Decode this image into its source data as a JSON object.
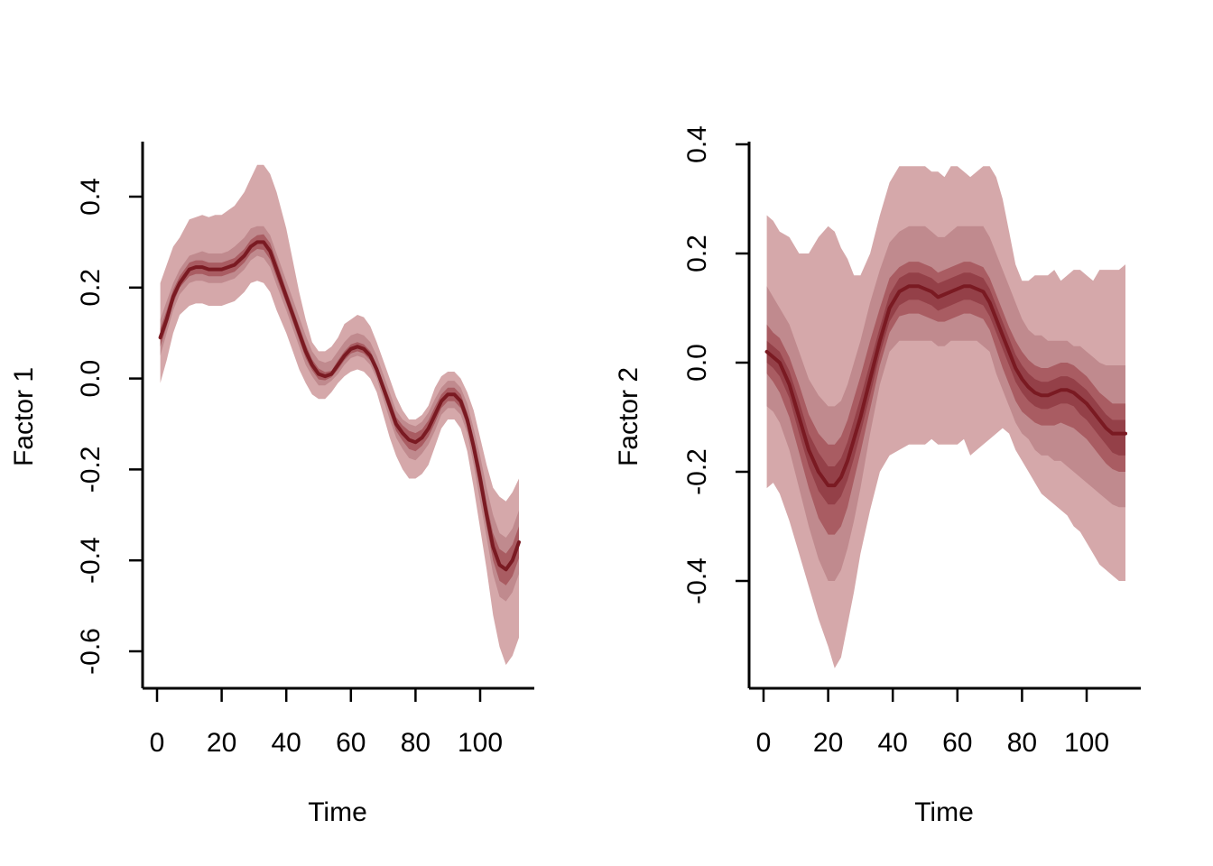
{
  "chart_data": [
    {
      "type": "area",
      "xlabel": "Time",
      "ylabel": "Factor 1",
      "xlim": [
        -3,
        117
      ],
      "ylim": [
        -0.68,
        0.52
      ],
      "x_ticks": [
        0,
        20,
        40,
        60,
        80,
        100
      ],
      "x_tick_labels": [
        "0",
        "20",
        "40",
        "60",
        "80",
        "100"
      ],
      "y_ticks": [
        -0.6,
        -0.4,
        -0.2,
        0.0,
        0.2,
        0.4
      ],
      "y_tick_labels": [
        "-0.6",
        "-0.4",
        "-0.2",
        "0.0",
        "0.2",
        "0.4"
      ],
      "grid": false,
      "x": [
        1,
        3,
        5,
        7,
        10,
        12,
        14,
        16,
        18,
        20,
        22,
        24,
        27,
        29,
        31,
        33,
        35,
        37,
        40,
        42,
        44,
        46,
        48,
        50,
        52,
        54,
        56,
        58,
        60,
        62,
        64,
        66,
        68,
        70,
        72,
        74,
        76,
        78,
        80,
        82,
        84,
        86,
        88,
        90,
        92,
        94,
        96,
        98,
        100,
        102,
        104,
        106,
        108,
        110,
        112
      ],
      "series": [
        {
          "values": [
            0.09,
            0.13,
            0.18,
            0.21,
            0.24,
            0.245,
            0.245,
            0.24,
            0.24,
            0.24,
            0.245,
            0.25,
            0.27,
            0.29,
            0.3,
            0.3,
            0.28,
            0.24,
            0.18,
            0.14,
            0.1,
            0.06,
            0.03,
            0.01,
            0.005,
            0.01,
            0.03,
            0.05,
            0.065,
            0.07,
            0.065,
            0.05,
            0.02,
            -0.02,
            -0.06,
            -0.1,
            -0.12,
            -0.135,
            -0.14,
            -0.13,
            -0.11,
            -0.08,
            -0.05,
            -0.035,
            -0.035,
            -0.05,
            -0.09,
            -0.15,
            -0.22,
            -0.3,
            -0.37,
            -0.41,
            -0.42,
            -0.4,
            -0.36
          ]
        }
      ],
      "bands": {
        "lower": [
          [
            -0.01,
            0.04,
            0.1,
            0.14,
            0.16,
            0.165,
            0.165,
            0.16,
            0.16,
            0.16,
            0.165,
            0.17,
            0.19,
            0.21,
            0.215,
            0.21,
            0.19,
            0.15,
            0.1,
            0.06,
            0.02,
            -0.01,
            -0.035,
            -0.045,
            -0.045,
            -0.03,
            -0.01,
            0.005,
            0.015,
            0.02,
            0.015,
            0.0,
            -0.03,
            -0.08,
            -0.13,
            -0.17,
            -0.2,
            -0.22,
            -0.22,
            -0.21,
            -0.19,
            -0.15,
            -0.11,
            -0.09,
            -0.09,
            -0.11,
            -0.16,
            -0.24,
            -0.33,
            -0.42,
            -0.52,
            -0.59,
            -0.63,
            -0.61,
            -0.57
          ],
          [
            0.05,
            0.1,
            0.15,
            0.185,
            0.21,
            0.215,
            0.215,
            0.21,
            0.21,
            0.21,
            0.215,
            0.22,
            0.24,
            0.26,
            0.27,
            0.265,
            0.245,
            0.205,
            0.15,
            0.11,
            0.07,
            0.03,
            0.005,
            -0.015,
            -0.015,
            -0.005,
            0.01,
            0.03,
            0.045,
            0.05,
            0.045,
            0.03,
            0.0,
            -0.045,
            -0.09,
            -0.13,
            -0.155,
            -0.175,
            -0.18,
            -0.165,
            -0.145,
            -0.115,
            -0.08,
            -0.065,
            -0.065,
            -0.08,
            -0.12,
            -0.19,
            -0.27,
            -0.35,
            -0.43,
            -0.48,
            -0.49,
            -0.47,
            -0.43
          ],
          [
            0.07,
            0.115,
            0.165,
            0.2,
            0.225,
            0.23,
            0.23,
            0.225,
            0.225,
            0.225,
            0.23,
            0.235,
            0.255,
            0.275,
            0.285,
            0.283,
            0.262,
            0.222,
            0.165,
            0.125,
            0.085,
            0.045,
            0.018,
            -0.002,
            -0.004,
            0.003,
            0.02,
            0.04,
            0.055,
            0.06,
            0.055,
            0.04,
            0.01,
            -0.032,
            -0.075,
            -0.115,
            -0.137,
            -0.155,
            -0.16,
            -0.148,
            -0.128,
            -0.098,
            -0.065,
            -0.05,
            -0.05,
            -0.065,
            -0.105,
            -0.17,
            -0.245,
            -0.325,
            -0.4,
            -0.445,
            -0.455,
            -0.435,
            -0.395
          ]
        ],
        "upper": [
          [
            0.21,
            0.25,
            0.29,
            0.31,
            0.35,
            0.355,
            0.36,
            0.355,
            0.36,
            0.36,
            0.37,
            0.38,
            0.41,
            0.44,
            0.47,
            0.47,
            0.45,
            0.41,
            0.33,
            0.26,
            0.19,
            0.13,
            0.08,
            0.06,
            0.06,
            0.07,
            0.09,
            0.12,
            0.13,
            0.14,
            0.135,
            0.115,
            0.08,
            0.04,
            0.0,
            -0.04,
            -0.07,
            -0.09,
            -0.09,
            -0.08,
            -0.06,
            -0.02,
            0.005,
            0.015,
            0.015,
            0.0,
            -0.03,
            -0.07,
            -0.13,
            -0.19,
            -0.24,
            -0.26,
            -0.27,
            -0.25,
            -0.22
          ],
          [
            0.13,
            0.17,
            0.21,
            0.24,
            0.27,
            0.275,
            0.28,
            0.275,
            0.275,
            0.275,
            0.28,
            0.29,
            0.31,
            0.33,
            0.335,
            0.335,
            0.315,
            0.275,
            0.215,
            0.175,
            0.135,
            0.095,
            0.06,
            0.04,
            0.035,
            0.04,
            0.06,
            0.08,
            0.095,
            0.1,
            0.095,
            0.08,
            0.05,
            0.01,
            -0.03,
            -0.07,
            -0.09,
            -0.1,
            -0.105,
            -0.095,
            -0.075,
            -0.045,
            -0.02,
            -0.005,
            -0.005,
            -0.02,
            -0.055,
            -0.11,
            -0.17,
            -0.24,
            -0.3,
            -0.34,
            -0.35,
            -0.33,
            -0.29
          ],
          [
            0.11,
            0.15,
            0.195,
            0.225,
            0.255,
            0.26,
            0.26,
            0.255,
            0.255,
            0.255,
            0.26,
            0.265,
            0.285,
            0.305,
            0.315,
            0.317,
            0.298,
            0.258,
            0.195,
            0.155,
            0.115,
            0.075,
            0.042,
            0.022,
            0.014,
            0.017,
            0.04,
            0.06,
            0.075,
            0.08,
            0.075,
            0.06,
            0.03,
            -0.008,
            -0.045,
            -0.085,
            -0.103,
            -0.115,
            -0.12,
            -0.112,
            -0.092,
            -0.062,
            -0.035,
            -0.02,
            -0.02,
            -0.035,
            -0.075,
            -0.13,
            -0.195,
            -0.275,
            -0.34,
            -0.375,
            -0.385,
            -0.365,
            -0.325
          ]
        ]
      }
    },
    {
      "type": "area",
      "xlabel": "Time",
      "ylabel": "Factor 2",
      "xlim": [
        -3,
        117
      ],
      "ylim": [
        -0.6,
        0.4
      ],
      "x_ticks": [
        0,
        20,
        40,
        60,
        80,
        100
      ],
      "x_tick_labels": [
        "0",
        "20",
        "40",
        "60",
        "80",
        "100"
      ],
      "y_ticks": [
        -0.4,
        -0.2,
        0.0,
        0.2,
        0.4
      ],
      "y_tick_labels": [
        "-0.4",
        "-0.2",
        "0.0",
        "0.2",
        "0.4"
      ],
      "grid": false,
      "x": [
        1,
        3,
        5,
        8,
        11,
        14,
        17,
        20,
        22,
        24,
        26,
        28,
        30,
        33,
        36,
        39,
        42,
        45,
        48,
        50,
        52,
        54,
        56,
        58,
        60,
        62,
        64,
        66,
        68,
        70,
        72,
        74,
        76,
        78,
        80,
        82,
        84,
        86,
        88,
        90,
        92,
        94,
        96,
        98,
        100,
        102,
        104,
        106,
        108,
        110,
        112
      ],
      "series": [
        {
          "values": [
            0.02,
            0.01,
            0.0,
            -0.04,
            -0.1,
            -0.16,
            -0.2,
            -0.225,
            -0.225,
            -0.21,
            -0.18,
            -0.14,
            -0.1,
            -0.03,
            0.04,
            0.1,
            0.13,
            0.14,
            0.14,
            0.135,
            0.13,
            0.12,
            0.125,
            0.13,
            0.135,
            0.14,
            0.14,
            0.135,
            0.13,
            0.11,
            0.08,
            0.05,
            0.02,
            -0.01,
            -0.03,
            -0.045,
            -0.055,
            -0.06,
            -0.06,
            -0.055,
            -0.05,
            -0.05,
            -0.055,
            -0.065,
            -0.075,
            -0.09,
            -0.105,
            -0.12,
            -0.13,
            -0.13,
            -0.13
          ]
        }
      ],
      "bands": {
        "lower": [
          [
            -0.23,
            -0.22,
            -0.24,
            -0.29,
            -0.35,
            -0.41,
            -0.47,
            -0.52,
            -0.56,
            -0.54,
            -0.48,
            -0.42,
            -0.35,
            -0.27,
            -0.2,
            -0.17,
            -0.16,
            -0.15,
            -0.15,
            -0.15,
            -0.14,
            -0.15,
            -0.15,
            -0.15,
            -0.15,
            -0.14,
            -0.17,
            -0.16,
            -0.15,
            -0.14,
            -0.13,
            -0.12,
            -0.13,
            -0.16,
            -0.18,
            -0.2,
            -0.22,
            -0.24,
            -0.25,
            -0.26,
            -0.27,
            -0.28,
            -0.3,
            -0.31,
            -0.33,
            -0.35,
            -0.37,
            -0.38,
            -0.39,
            -0.4,
            -0.4
          ],
          [
            -0.08,
            -0.09,
            -0.11,
            -0.16,
            -0.23,
            -0.3,
            -0.36,
            -0.4,
            -0.4,
            -0.38,
            -0.34,
            -0.29,
            -0.23,
            -0.13,
            -0.04,
            0.02,
            0.04,
            0.04,
            0.04,
            0.04,
            0.04,
            0.03,
            0.03,
            0.04,
            0.04,
            0.04,
            0.04,
            0.04,
            0.03,
            0.02,
            -0.02,
            -0.05,
            -0.08,
            -0.11,
            -0.13,
            -0.14,
            -0.16,
            -0.17,
            -0.17,
            -0.18,
            -0.18,
            -0.19,
            -0.2,
            -0.21,
            -0.22,
            -0.23,
            -0.24,
            -0.25,
            -0.26,
            -0.265,
            -0.265
          ],
          [
            -0.02,
            -0.035,
            -0.055,
            -0.1,
            -0.165,
            -0.23,
            -0.285,
            -0.315,
            -0.315,
            -0.3,
            -0.265,
            -0.215,
            -0.165,
            -0.085,
            -0.005,
            0.055,
            0.085,
            0.09,
            0.09,
            0.085,
            0.08,
            0.075,
            0.075,
            0.08,
            0.085,
            0.09,
            0.09,
            0.085,
            0.08,
            0.06,
            0.025,
            -0.01,
            -0.04,
            -0.07,
            -0.09,
            -0.1,
            -0.11,
            -0.115,
            -0.115,
            -0.115,
            -0.11,
            -0.115,
            -0.12,
            -0.13,
            -0.14,
            -0.155,
            -0.17,
            -0.185,
            -0.195,
            -0.2,
            -0.2
          ],
          [
            0.0,
            -0.01,
            -0.025,
            -0.065,
            -0.13,
            -0.19,
            -0.235,
            -0.26,
            -0.26,
            -0.245,
            -0.215,
            -0.175,
            -0.13,
            -0.06,
            0.015,
            0.075,
            0.105,
            0.115,
            0.115,
            0.11,
            0.105,
            0.095,
            0.1,
            0.105,
            0.11,
            0.115,
            0.115,
            0.11,
            0.105,
            0.085,
            0.055,
            0.025,
            -0.005,
            -0.035,
            -0.055,
            -0.07,
            -0.08,
            -0.085,
            -0.085,
            -0.08,
            -0.075,
            -0.075,
            -0.08,
            -0.095,
            -0.105,
            -0.12,
            -0.135,
            -0.15,
            -0.165,
            -0.17,
            -0.17
          ]
        ],
        "upper": [
          [
            0.27,
            0.26,
            0.24,
            0.23,
            0.2,
            0.2,
            0.23,
            0.25,
            0.24,
            0.21,
            0.19,
            0.16,
            0.16,
            0.2,
            0.27,
            0.33,
            0.36,
            0.36,
            0.36,
            0.36,
            0.35,
            0.35,
            0.34,
            0.36,
            0.36,
            0.35,
            0.34,
            0.35,
            0.36,
            0.36,
            0.34,
            0.3,
            0.24,
            0.18,
            0.15,
            0.15,
            0.16,
            0.16,
            0.16,
            0.17,
            0.15,
            0.16,
            0.17,
            0.17,
            0.16,
            0.15,
            0.17,
            0.17,
            0.17,
            0.17,
            0.18
          ],
          [
            0.14,
            0.12,
            0.1,
            0.07,
            0.02,
            -0.03,
            -0.06,
            -0.08,
            -0.08,
            -0.07,
            -0.04,
            0.0,
            0.04,
            0.11,
            0.17,
            0.22,
            0.24,
            0.25,
            0.25,
            0.25,
            0.24,
            0.23,
            0.23,
            0.24,
            0.25,
            0.25,
            0.25,
            0.25,
            0.25,
            0.23,
            0.2,
            0.17,
            0.14,
            0.11,
            0.08,
            0.06,
            0.05,
            0.05,
            0.04,
            0.04,
            0.04,
            0.04,
            0.03,
            0.03,
            0.02,
            0.01,
            0.0,
            -0.005,
            -0.005,
            -0.005,
            -0.005
          ],
          [
            0.07,
            0.055,
            0.045,
            0.01,
            -0.04,
            -0.095,
            -0.13,
            -0.15,
            -0.15,
            -0.135,
            -0.105,
            -0.065,
            -0.025,
            0.04,
            0.1,
            0.155,
            0.175,
            0.185,
            0.185,
            0.18,
            0.175,
            0.165,
            0.17,
            0.175,
            0.18,
            0.185,
            0.185,
            0.18,
            0.175,
            0.155,
            0.125,
            0.095,
            0.065,
            0.04,
            0.02,
            0.005,
            -0.005,
            -0.01,
            -0.01,
            -0.005,
            0.0,
            0.0,
            -0.005,
            -0.015,
            -0.025,
            -0.04,
            -0.055,
            -0.065,
            -0.075,
            -0.075,
            -0.075
          ],
          [
            0.04,
            0.03,
            0.02,
            -0.015,
            -0.07,
            -0.13,
            -0.165,
            -0.19,
            -0.19,
            -0.175,
            -0.145,
            -0.105,
            -0.065,
            0.0,
            0.065,
            0.125,
            0.155,
            0.165,
            0.165,
            0.16,
            0.155,
            0.145,
            0.15,
            0.155,
            0.16,
            0.165,
            0.165,
            0.16,
            0.155,
            0.135,
            0.105,
            0.075,
            0.045,
            0.015,
            -0.005,
            -0.02,
            -0.03,
            -0.035,
            -0.035,
            -0.03,
            -0.025,
            -0.025,
            -0.03,
            -0.04,
            -0.05,
            -0.065,
            -0.08,
            -0.095,
            -0.105,
            -0.105,
            -0.105
          ]
        ]
      }
    }
  ],
  "colors": {
    "line": "#7a1a22",
    "band_outer": "#d5a8aa",
    "band_mid": "#c08a8e",
    "band_inner": "#a95c62",
    "band_core": "#944048"
  }
}
